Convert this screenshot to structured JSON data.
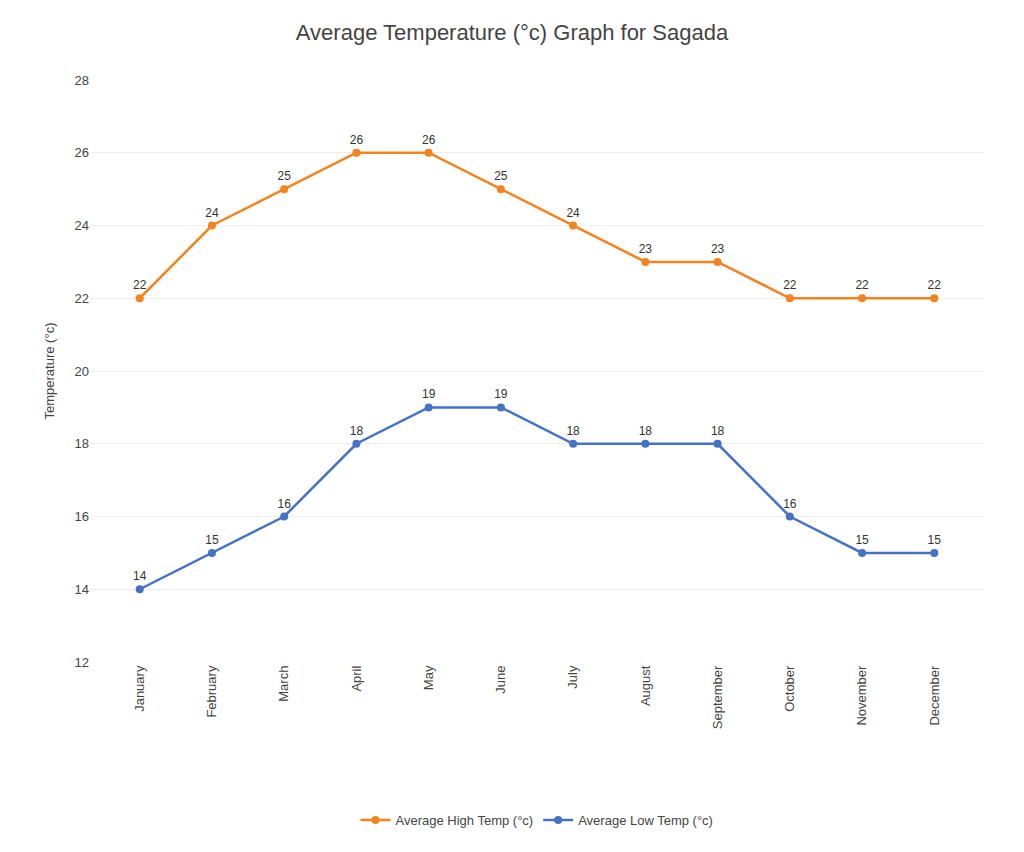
{
  "chart_data": {
    "type": "line",
    "title": "Average Temperature (°c) Graph for Sagada",
    "ylabel": "Temperature (°c)",
    "categories": [
      "January",
      "February",
      "March",
      "April",
      "May",
      "June",
      "July",
      "August",
      "September",
      "October",
      "November",
      "December"
    ],
    "series": [
      {
        "name": "Average High Temp (°c)",
        "color": "#f4821e",
        "values": [
          22,
          24,
          25,
          26,
          26,
          25,
          24,
          23,
          23,
          22,
          22,
          22
        ]
      },
      {
        "name": "Average Low Temp (°c)",
        "color": "#4472c4",
        "values": [
          14,
          15,
          16,
          18,
          19,
          19,
          18,
          18,
          18,
          16,
          15,
          15
        ]
      }
    ],
    "ylim": [
      12,
      28
    ],
    "yticks": [
      12,
      14,
      16,
      18,
      20,
      22,
      24,
      26,
      28
    ],
    "grid": true,
    "legend": "bottom",
    "marker": "circle",
    "data_labels": true
  }
}
